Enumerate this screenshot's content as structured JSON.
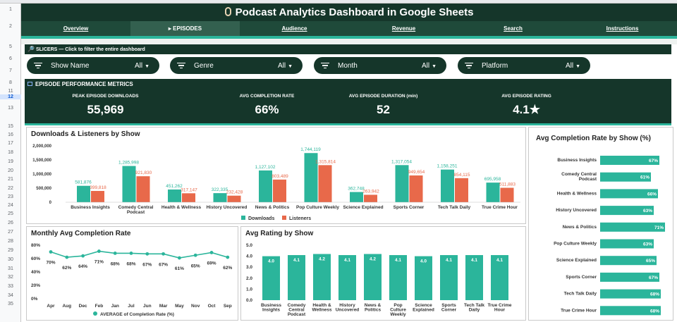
{
  "title": "Podcast Analytics Dashboard in Google Sheets",
  "nav": [
    {
      "label": "Overview"
    },
    {
      "label": "EPISODES",
      "marker": "▸"
    },
    {
      "label": "Audience"
    },
    {
      "label": "Revenue"
    },
    {
      "label": "Search"
    },
    {
      "label": "Instructions"
    }
  ],
  "row_numbers": [
    "1",
    "2",
    "5",
    "6",
    "7",
    "8",
    "11",
    "12",
    "13",
    "15",
    "16",
    "17",
    "18",
    "19",
    "20",
    "21",
    "22",
    "23",
    "24",
    "25",
    "26",
    "27",
    "28",
    "29",
    "30",
    "31",
    "32",
    "33",
    "34",
    "35"
  ],
  "slicers": {
    "header": "SLICERS — Click to filter the entire dashboard",
    "items": [
      {
        "label": "Show Name",
        "value": "All"
      },
      {
        "label": "Genre",
        "value": "All"
      },
      {
        "label": "Month",
        "value": "All"
      },
      {
        "label": "Platform",
        "value": "All"
      }
    ]
  },
  "metrics": {
    "header": "EPISODE PERFORMANCE METRICS",
    "items": [
      {
        "label": "PEAK EPISODE DOWNLOADS",
        "value": "55,969"
      },
      {
        "label": "AVG COMPLETION RATE",
        "value": "66%"
      },
      {
        "label": "AVG EPISODE DURATION (min)",
        "value": "52"
      },
      {
        "label": "AVG EPISODE RATING",
        "value": "4.1★"
      }
    ]
  },
  "colors": {
    "dark_green": "#15362a",
    "nav_green": "#1f4a3a",
    "teal": "#2bb59b",
    "orange": "#e8694a"
  },
  "chart_data": [
    {
      "type": "bar",
      "title": "Downloads & Listeners by Show",
      "categories": [
        "Business Insights",
        "Comedy Central Podcast",
        "Health & Wellness",
        "History Uncovered",
        "News & Politics",
        "Pop Culture Weekly",
        "Science Explained",
        "Sports Corner",
        "Tech Talk Daily",
        "True Crime Hour"
      ],
      "series": [
        {
          "name": "Downloads",
          "values": [
            581876,
            1285998,
            451262,
            322335,
            1127102,
            1744119,
            362748,
            1317054,
            1158251,
            695958
          ],
          "labels": [
            "581,876",
            "1,285,998",
            "451,262",
            "322,335",
            "1,127,102",
            "1,744,119",
            "362,748",
            "1,317,054",
            "1,158,251",
            "695,958"
          ],
          "color": "#2bb59b"
        },
        {
          "name": "Listeners",
          "values": [
            399818,
            921830,
            317147,
            232428,
            803489,
            1315814,
            263942,
            949654,
            854115,
            511883
          ],
          "labels": [
            "399,818",
            "921,830",
            "317,147",
            "232,428",
            "803,489",
            "1,315,814",
            "263,942",
            "949,654",
            "854,115",
            "511,883"
          ],
          "color": "#e8694a"
        }
      ],
      "yticks": [
        "2,000,000",
        "1,500,000",
        "1,000,000",
        "500,000",
        "0"
      ],
      "ylim": [
        0,
        2000000
      ],
      "legend": "bottom"
    },
    {
      "type": "line",
      "title": "Monthly Avg Completion Rate",
      "categories": [
        "Apr",
        "Aug",
        "Dec",
        "Feb",
        "Jan",
        "Jul",
        "Jun",
        "Mar",
        "May",
        "Nov",
        "Oct",
        "Sep"
      ],
      "series": [
        {
          "name": "AVERAGE of Completion Rate (%)",
          "values": [
            70,
            62,
            64,
            71,
            68,
            68,
            67,
            67,
            61,
            65,
            69,
            62
          ],
          "labels": [
            "70%",
            "62%",
            "64%",
            "71%",
            "68%",
            "68%",
            "67%",
            "67%",
            "61%",
            "65%",
            "69%",
            "62%"
          ],
          "color": "#2bb59b"
        }
      ],
      "yticks": [
        "80%",
        "60%",
        "40%",
        "20%",
        "0%"
      ],
      "ylim": [
        0,
        80
      ],
      "legend": "bottom"
    },
    {
      "type": "bar",
      "title": "Avg Rating by Show",
      "categories": [
        "Business Insights",
        "Comedy Central Podcast",
        "Health & Wellness",
        "History Uncovered",
        "News & Politics",
        "Pop Culture Weekly",
        "Science Explained",
        "Sports Corner",
        "Tech Talk Daily",
        "True Crime Hour"
      ],
      "series": [
        {
          "values": [
            4.0,
            4.1,
            4.2,
            4.1,
            4.2,
            4.1,
            4.0,
            4.1,
            4.1,
            4.1
          ],
          "labels": [
            "4.0",
            "4.1",
            "4.2",
            "4.1",
            "4.2",
            "4.1",
            "4.0",
            "4.1",
            "4.1",
            "4.1"
          ],
          "color": "#2bb59b"
        }
      ],
      "yticks": [
        "5.0",
        "4.0",
        "3.0",
        "2.0",
        "1.0",
        "0.0"
      ],
      "ylim": [
        0,
        5
      ]
    },
    {
      "type": "bar",
      "orientation": "horizontal",
      "title": "Avg Completion Rate by Show (%)",
      "categories": [
        "Business Insights",
        "Comedy Central Podcast",
        "Health & Wellness",
        "History Uncovered",
        "News & Politics",
        "Pop Culture Weekly",
        "Science Explained",
        "Sports Corner",
        "Tech Talk Daily",
        "True Crime Hour"
      ],
      "series": [
        {
          "values": [
            67,
            61,
            66,
            63,
            71,
            63,
            65,
            67,
            68,
            68
          ],
          "labels": [
            "67%",
            "61%",
            "66%",
            "63%",
            "71%",
            "63%",
            "65%",
            "67%",
            "68%",
            "68%"
          ],
          "color": "#2bb59b"
        }
      ]
    }
  ]
}
